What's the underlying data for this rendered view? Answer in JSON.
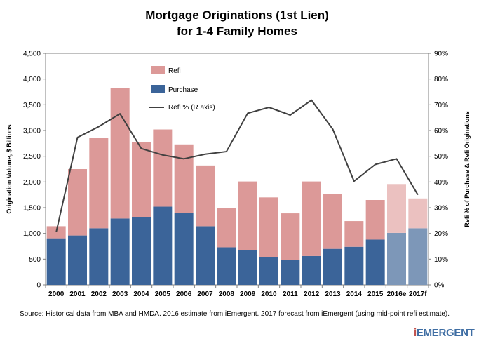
{
  "chart_data": {
    "type": "bar",
    "title_line1": "Mortgage Originations (1st Lien)",
    "title_line2": "for 1-4 Family Homes",
    "ylabel": "Origination Volume, $ Billions",
    "y2label": "Refi % of Purchase & Refi Originations",
    "ylim": [
      0,
      4500
    ],
    "y2lim": [
      0,
      90
    ],
    "y_ticks": [
      "0",
      "500",
      "1,000",
      "1,500",
      "2,000",
      "2,500",
      "3,000",
      "3,500",
      "4,000",
      "4,500"
    ],
    "y2_ticks": [
      "0%",
      "10%",
      "20%",
      "30%",
      "40%",
      "50%",
      "60%",
      "70%",
      "80%",
      "90%"
    ],
    "categories": [
      "2000",
      "2001",
      "2002",
      "2003",
      "2004",
      "2005",
      "2006",
      "2007",
      "2008",
      "2009",
      "2010",
      "2011",
      "2012",
      "2013",
      "2014",
      "2015",
      "2016e",
      "2017f"
    ],
    "series": [
      {
        "name": "Purchase",
        "stack": "volume",
        "values": [
          905,
          960,
          1100,
          1290,
          1320,
          1520,
          1400,
          1140,
          730,
          670,
          540,
          480,
          560,
          700,
          740,
          880,
          1010,
          1100
        ]
      },
      {
        "name": "Refi",
        "stack": "volume",
        "values": [
          235,
          1290,
          1760,
          2530,
          1460,
          1500,
          1330,
          1180,
          770,
          1340,
          1160,
          910,
          1450,
          1060,
          500,
          770,
          950,
          580
        ]
      },
      {
        "name": "Refi % (R axis)",
        "axis": "right",
        "type": "line",
        "values": [
          20.5,
          57.3,
          61.5,
          66.5,
          53,
          50.5,
          49,
          50.8,
          51.8,
          66.7,
          69,
          66,
          71.8,
          60.5,
          40.3,
          46.8,
          49,
          35
        ]
      }
    ],
    "forecast_categories": [
      "2016e",
      "2017f"
    ],
    "legend_position": "top-left",
    "grid": false,
    "colors": {
      "purchase": "#3b6499",
      "refi": "#dc9998",
      "purchase_forecast": "#7d97b8",
      "refi_forecast": "#ebc1c0",
      "line": "#404040"
    }
  },
  "footer": {
    "source": "Source:  Historical data from MBA and HMDA.  2016 estimate from iEmergent.  2017 forecast from iEmergent (using mid-point refi estimate).",
    "logo_text_i": "i",
    "logo_text_rest": "EMERGENT"
  }
}
